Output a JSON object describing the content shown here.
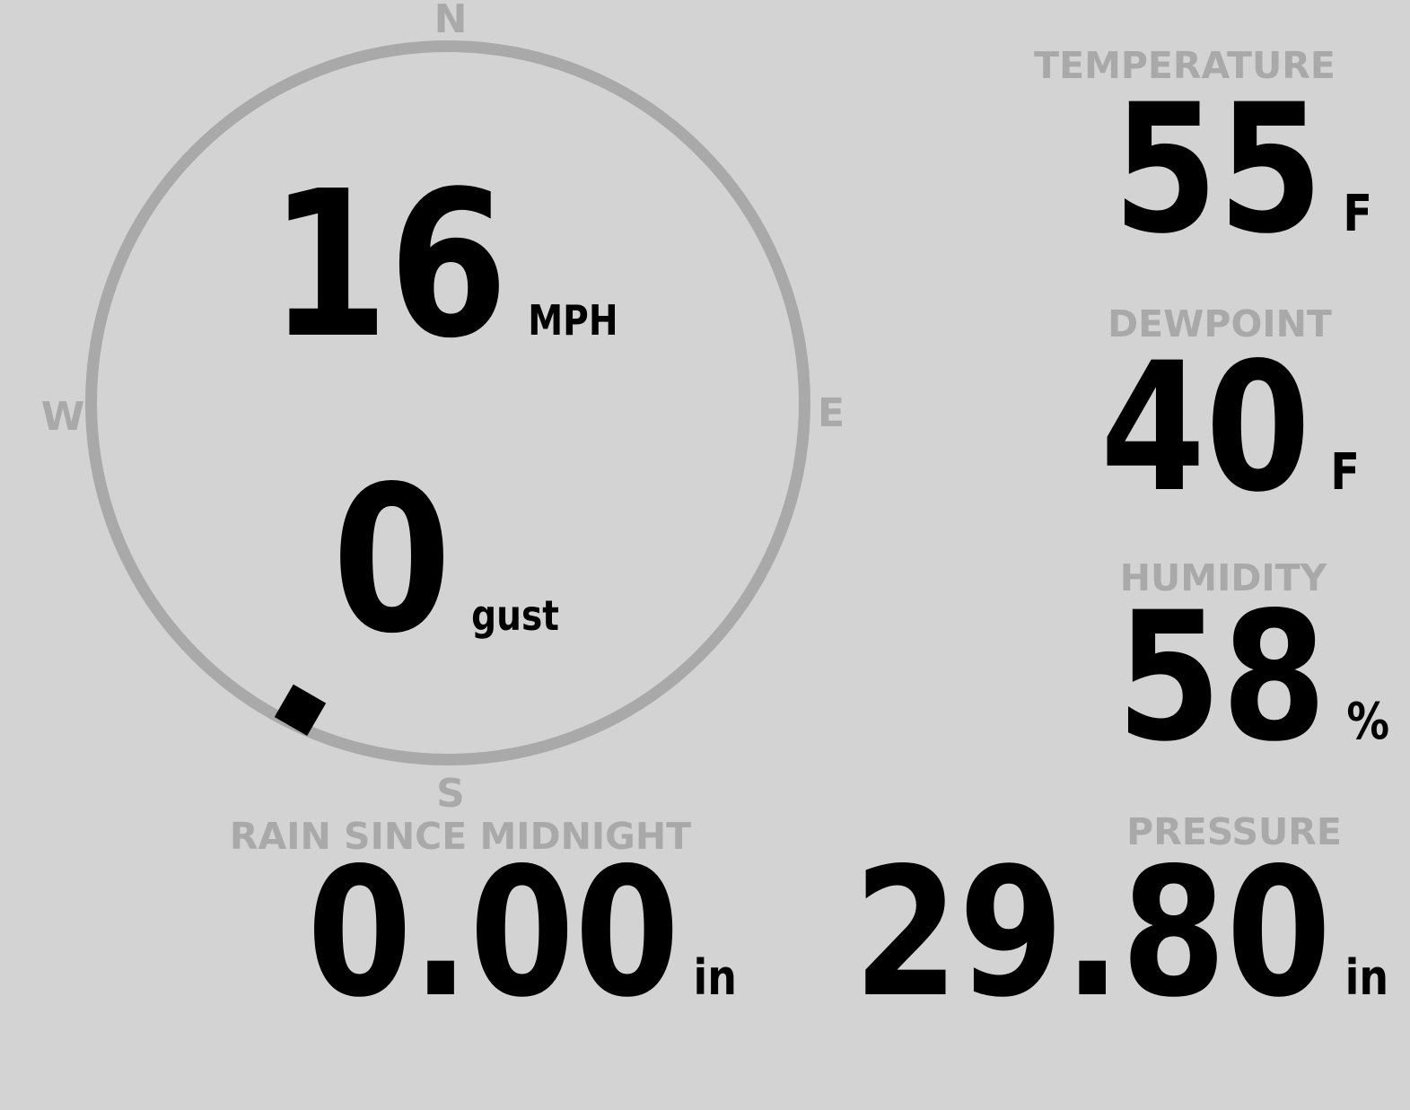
{
  "colors": {
    "background": "#d3d3d3",
    "muted_gray": "#a9a9a9",
    "value_black": "#000000"
  },
  "wind": {
    "speed": "16",
    "speed_unit": "MPH",
    "gust": "0",
    "gust_unit": "gust",
    "direction_deg": 210,
    "compass": {
      "north": "N",
      "east": "E",
      "south": "S",
      "west": "W"
    }
  },
  "metrics": {
    "temperature": {
      "label": "TEMPERATURE",
      "value": "55",
      "unit": "F"
    },
    "dewpoint": {
      "label": "DEWPOINT",
      "value": "40",
      "unit": "F"
    },
    "humidity": {
      "label": "HUMIDITY",
      "value": "58",
      "unit": "%"
    },
    "rain": {
      "label": "RAIN SINCE MIDNIGHT",
      "value": "0.00",
      "unit": "in"
    },
    "pressure": {
      "label": "PRESSURE",
      "value": "29.80",
      "unit": "in"
    }
  }
}
